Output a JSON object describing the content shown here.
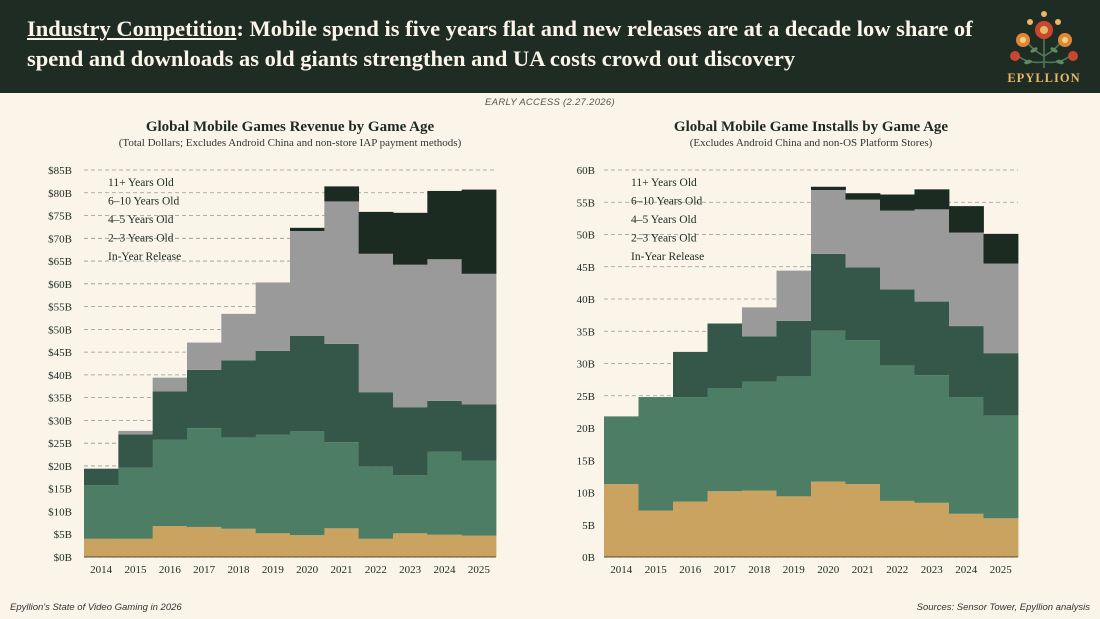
{
  "header": {
    "title_prefix": "Industry Competition",
    "title_rest": ": Mobile spend is five years flat and new releases are at a decade low share of spend and downloads as old giants strengthen and UA costs crowd out discovery",
    "brand": "EPYLLION"
  },
  "early_access": "EARLY ACCESS (2.27.2026)",
  "footer": {
    "left": "Epyllion's State of Video Gaming in 2026",
    "right": "Sources: Sensor Tower, Epyllion analysis"
  },
  "colors": {
    "in_year": "#c9a35f",
    "y2_3": "#4d7d64",
    "y4_5": "#34574a",
    "y6_10": "#9a9a9a",
    "y11": "#1c2b22",
    "grid": "#8f9a94"
  },
  "chart_data": [
    {
      "type": "bar",
      "stacked": true,
      "title": "Global Mobile Games Revenue by Game Age",
      "subtitle": "(Total Dollars; Excludes Android China and non-store IAP payment methods)",
      "categories": [
        "2014",
        "2015",
        "2016",
        "2017",
        "2018",
        "2019",
        "2020",
        "2021",
        "2022",
        "2023",
        "2024",
        "2025"
      ],
      "ylim": [
        0,
        85
      ],
      "yticks": [
        0,
        5,
        10,
        15,
        20,
        25,
        30,
        35,
        40,
        45,
        50,
        55,
        60,
        65,
        70,
        75,
        80,
        85
      ],
      "ytick_labels": [
        "$0B",
        "$5B",
        "$10B",
        "$15B",
        "$20B",
        "$25B",
        "$30B",
        "$35B",
        "$40B",
        "$45B",
        "$50B",
        "$55B",
        "$60B",
        "$65B",
        "$70B",
        "$75B",
        "$80B",
        "$85B"
      ],
      "legend": [
        "11+ Years Old",
        "6–10 Years Old",
        "4–5 Years Old",
        "2–3 Years Old",
        "In-Year Release"
      ],
      "legend_position": "top-left",
      "grid": true,
      "series": [
        {
          "name": "In-Year Release",
          "values": [
            4.0,
            4.0,
            6.8,
            6.6,
            6.2,
            5.2,
            4.8,
            6.3,
            4.0,
            5.2,
            4.9,
            4.7
          ]
        },
        {
          "name": "2–3 Years Old",
          "values": [
            11.8,
            15.6,
            19.0,
            21.7,
            20.0,
            21.7,
            22.8,
            18.9,
            15.9,
            12.8,
            18.2,
            16.5
          ]
        },
        {
          "name": "4–5 Years Old",
          "values": [
            3.6,
            7.3,
            10.6,
            12.8,
            17.0,
            18.4,
            21.0,
            21.6,
            16.3,
            14.9,
            11.2,
            12.3
          ]
        },
        {
          "name": "6–10 Years Old",
          "values": [
            0,
            0.8,
            3.0,
            6.0,
            10.2,
            15.0,
            23.0,
            31.3,
            30.4,
            31.3,
            31.1,
            28.7
          ]
        },
        {
          "name": "11+ Years Old",
          "values": [
            0,
            0,
            0,
            0,
            0,
            0,
            0.7,
            3.3,
            9.2,
            11.4,
            15.0,
            18.5
          ]
        }
      ]
    },
    {
      "type": "bar",
      "stacked": true,
      "title": "Global Mobile Game Installs by Game Age",
      "subtitle": "(Excludes Android China and non-OS Platform Stores)",
      "categories": [
        "2014",
        "2015",
        "2016",
        "2017",
        "2018",
        "2019",
        "2020",
        "2021",
        "2022",
        "2023",
        "2024",
        "2025"
      ],
      "ylim": [
        0,
        60
      ],
      "yticks": [
        0,
        5,
        10,
        15,
        20,
        25,
        30,
        35,
        40,
        45,
        50,
        55,
        60
      ],
      "ytick_labels": [
        "0B",
        "5B",
        "10B",
        "15B",
        "20B",
        "25B",
        "30B",
        "35B",
        "40B",
        "45B",
        "50B",
        "55B",
        "60B"
      ],
      "legend": [
        "11+ Years Old",
        "6–10 Years Old",
        "4–5 Years Old",
        "2–3 Years Old",
        "In-Year Release"
      ],
      "legend_position": "top-left",
      "grid": true,
      "series": [
        {
          "name": "In-Year Release",
          "values": [
            11.3,
            7.2,
            8.6,
            10.2,
            10.3,
            9.4,
            11.7,
            11.3,
            8.7,
            8.4,
            6.7,
            6.0
          ]
        },
        {
          "name": "2–3 Years Old",
          "values": [
            10.5,
            17.6,
            16.2,
            16.0,
            16.9,
            18.6,
            23.4,
            22.3,
            21.0,
            19.8,
            18.1,
            15.9
          ]
        },
        {
          "name": "4–5 Years Old",
          "values": [
            0,
            0,
            7.0,
            10.0,
            7.0,
            8.6,
            11.9,
            11.3,
            11.8,
            11.4,
            11.0,
            9.7
          ]
        },
        {
          "name": "6–10 Years Old",
          "values": [
            0,
            0,
            0,
            0,
            4.5,
            7.8,
            9.9,
            10.5,
            12.2,
            14.3,
            14.5,
            13.9
          ]
        },
        {
          "name": "11+ Years Old",
          "values": [
            0,
            0,
            0,
            0,
            0,
            0,
            0.5,
            1.0,
            2.5,
            3.1,
            4.1,
            4.6
          ]
        }
      ]
    }
  ]
}
